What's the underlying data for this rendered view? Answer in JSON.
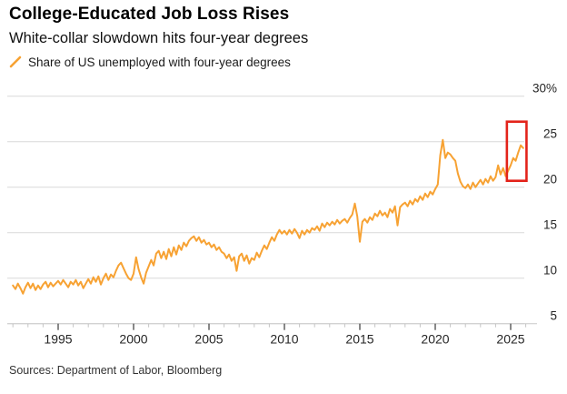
{
  "header": {
    "title": "College-Educated Job Loss Rises",
    "subtitle": "White-collar slowdown hits four-year degrees"
  },
  "legend": {
    "label": "Share of US unemployed with four-year degrees"
  },
  "source": "Sources: Department of Labor, Bloomberg",
  "colors": {
    "line": "#F7A233",
    "highlight_box": "#E3231A",
    "grid": "#D9D9D9",
    "axis": "#C9C9C9",
    "tick_minor": "#C4C4C4",
    "tick_major": "#3A3A3A",
    "tick_label": "#262626"
  },
  "chart_data": {
    "type": "line",
    "title": "College-Educated Job Loss Rises",
    "subtitle": "White-collar slowdown hits four-year degrees",
    "series_name": "Share of US unemployed with four-year degrees",
    "unit": "%",
    "grid": "horizontal",
    "legend_position": "top-left",
    "xlim": [
      1991.7,
      2026.3
    ],
    "ylim": [
      5,
      30
    ],
    "x_ticks": [
      1995,
      2000,
      2005,
      2010,
      2015,
      2020,
      2025
    ],
    "x_minor_tick_start": 1992,
    "x_minor_tick_end": 2026,
    "y_ticks": [
      {
        "value": 30,
        "label": "30%"
      },
      {
        "value": 25,
        "label": "25"
      },
      {
        "value": 20,
        "label": "20"
      },
      {
        "value": 15,
        "label": "15"
      },
      {
        "value": 10,
        "label": "10"
      },
      {
        "value": 5,
        "label": "5"
      }
    ],
    "x_start": 1992.0,
    "x_step_years": 0.166667,
    "values": [
      9.2,
      8.8,
      9.4,
      8.9,
      8.3,
      9.0,
      9.5,
      8.9,
      9.4,
      8.7,
      9.2,
      8.8,
      9.3,
      9.6,
      9.0,
      9.5,
      9.1,
      9.4,
      9.7,
      9.3,
      9.8,
      9.4,
      9.0,
      9.6,
      9.3,
      9.8,
      9.2,
      9.6,
      8.9,
      9.4,
      9.9,
      9.4,
      10.1,
      9.6,
      10.2,
      9.3,
      10.0,
      10.5,
      9.8,
      10.4,
      10.1,
      10.8,
      11.4,
      11.7,
      11.1,
      10.5,
      10.0,
      9.8,
      10.5,
      12.3,
      11.0,
      10.1,
      9.4,
      10.6,
      11.3,
      12.0,
      11.4,
      12.7,
      13.0,
      12.2,
      12.9,
      12.1,
      13.2,
      12.4,
      13.4,
      12.6,
      13.6,
      13.1,
      13.9,
      13.5,
      14.1,
      14.4,
      14.6,
      14.1,
      14.5,
      13.9,
      14.2,
      13.7,
      13.9,
      13.4,
      13.7,
      13.1,
      13.4,
      12.9,
      12.7,
      12.2,
      12.6,
      11.9,
      12.3,
      10.8,
      12.4,
      12.7,
      11.9,
      12.5,
      11.6,
      12.2,
      12.0,
      12.8,
      12.3,
      13.0,
      13.6,
      13.2,
      13.9,
      14.5,
      14.1,
      14.8,
      15.3,
      14.9,
      15.2,
      14.8,
      15.3,
      14.9,
      15.4,
      15.0,
      14.4,
      15.2,
      14.8,
      15.3,
      15.0,
      15.5,
      15.3,
      15.7,
      15.2,
      16.0,
      15.6,
      16.1,
      15.8,
      16.2,
      15.9,
      16.4,
      16.0,
      16.3,
      16.5,
      16.1,
      16.6,
      17.0,
      18.2,
      16.8,
      14.0,
      16.2,
      16.5,
      16.1,
      16.7,
      16.4,
      17.1,
      16.8,
      17.4,
      16.9,
      17.2,
      16.7,
      17.6,
      17.2,
      17.9,
      15.8,
      17.8,
      18.1,
      18.3,
      17.9,
      18.5,
      18.1,
      18.7,
      18.4,
      19.0,
      18.6,
      19.3,
      18.9,
      19.5,
      19.2,
      19.8,
      20.3,
      23.5,
      25.2,
      23.2,
      23.8,
      23.6,
      23.2,
      22.9,
      21.5,
      20.6,
      20.1,
      19.9,
      20.3,
      19.8,
      20.5,
      20.0,
      20.4,
      20.8,
      20.3,
      20.9,
      20.5,
      21.2,
      20.7,
      21.1,
      22.4,
      21.4,
      22.1,
      21.2,
      21.8,
      22.4,
      23.2,
      22.9,
      23.8,
      24.6,
      24.3
    ],
    "highlight_box": {
      "x0": 2024.75,
      "x1": 2026.05,
      "y0": 20.7,
      "y1": 27.2
    }
  }
}
